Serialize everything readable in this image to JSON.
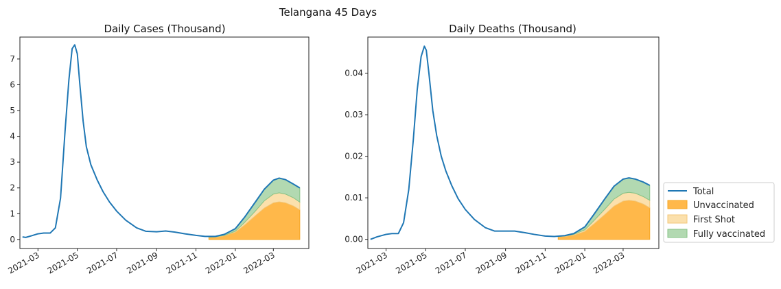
{
  "figure": {
    "title": "Telangana 45 Days"
  },
  "colors": {
    "total": "#1f77b4",
    "unvaccinated": "#ffb84a",
    "first_shot": "#fbe0ac",
    "fully_vaccinated": "#b2d9b1",
    "axis": "#222222"
  },
  "legend": {
    "items": [
      {
        "key": "total",
        "label": "Total"
      },
      {
        "key": "unvaccinated",
        "label": "Unvaccinated"
      },
      {
        "key": "first_shot",
        "label": "First Shot"
      },
      {
        "key": "fully_vaccinated",
        "label": "Fully vaccinated"
      }
    ]
  },
  "chart_data": [
    {
      "type": "area",
      "title": "Daily Cases (Thousand)",
      "xlabel": "",
      "ylabel": "",
      "xlim": [
        "2021-02-01",
        "2022-04-25"
      ],
      "ylim": [
        -0.35,
        7.85
      ],
      "yticks": [
        0,
        1,
        2,
        3,
        4,
        5,
        6,
        7
      ],
      "ytick_labels": [
        "0",
        "1",
        "2",
        "3",
        "4",
        "5",
        "6",
        "7"
      ],
      "xticks": [
        "2021-03-01",
        "2021-05-01",
        "2021-07-01",
        "2021-09-01",
        "2021-11-01",
        "2022-01-01",
        "2022-03-01"
      ],
      "xtick_labels": [
        "2021-03",
        "2021-05",
        "2021-07",
        "2021-09",
        "2021-11",
        "2022-01",
        "2022-03"
      ],
      "total": {
        "x": [
          "2021-02-05",
          "2021-02-10",
          "2021-02-20",
          "2021-03-01",
          "2021-03-10",
          "2021-03-20",
          "2021-03-28",
          "2021-04-05",
          "2021-04-12",
          "2021-04-18",
          "2021-04-23",
          "2021-04-27",
          "2021-05-01",
          "2021-05-05",
          "2021-05-10",
          "2021-05-15",
          "2021-05-22",
          "2021-06-01",
          "2021-06-10",
          "2021-06-20",
          "2021-07-01",
          "2021-07-15",
          "2021-08-01",
          "2021-08-15",
          "2021-09-01",
          "2021-09-15",
          "2021-10-01",
          "2021-10-15",
          "2021-11-01",
          "2021-11-15",
          "2021-12-01",
          "2021-12-15",
          "2022-01-01",
          "2022-01-15",
          "2022-02-01",
          "2022-02-15",
          "2022-03-01",
          "2022-03-10",
          "2022-03-20",
          "2022-04-01",
          "2022-04-11"
        ],
        "y": [
          0.1,
          0.08,
          0.15,
          0.22,
          0.25,
          0.25,
          0.45,
          1.6,
          4.2,
          6.2,
          7.4,
          7.55,
          7.2,
          6.0,
          4.6,
          3.6,
          2.9,
          2.3,
          1.85,
          1.45,
          1.1,
          0.75,
          0.45,
          0.32,
          0.3,
          0.33,
          0.28,
          0.22,
          0.16,
          0.12,
          0.12,
          0.2,
          0.42,
          0.85,
          1.45,
          1.95,
          2.3,
          2.38,
          2.32,
          2.15,
          2.0
        ]
      },
      "stack": {
        "x": [
          "2021-11-21",
          "2021-12-01",
          "2021-12-15",
          "2022-01-01",
          "2022-01-15",
          "2022-02-01",
          "2022-02-15",
          "2022-03-01",
          "2022-03-10",
          "2022-03-20",
          "2022-04-01",
          "2022-04-11"
        ],
        "unvaccinated": [
          0.08,
          0.09,
          0.14,
          0.28,
          0.55,
          0.92,
          1.22,
          1.42,
          1.46,
          1.42,
          1.3,
          1.15
        ],
        "first_shot": [
          0.01,
          0.01,
          0.02,
          0.04,
          0.1,
          0.18,
          0.28,
          0.34,
          0.35,
          0.34,
          0.32,
          0.3
        ],
        "fully_vaccinated": [
          0.01,
          0.02,
          0.04,
          0.1,
          0.2,
          0.35,
          0.45,
          0.54,
          0.57,
          0.56,
          0.53,
          0.55
        ]
      }
    },
    {
      "type": "area",
      "title": "Daily Deaths (Thousand)",
      "xlabel": "",
      "ylabel": "",
      "xlim": [
        "2021-02-01",
        "2022-04-25"
      ],
      "ylim": [
        -0.0022,
        0.0487
      ],
      "yticks": [
        0.0,
        0.01,
        0.02,
        0.03,
        0.04
      ],
      "ytick_labels": [
        "0.00",
        "0.01",
        "0.02",
        "0.03",
        "0.04"
      ],
      "xticks": [
        "2021-03-01",
        "2021-05-01",
        "2021-07-01",
        "2021-09-01",
        "2021-11-01",
        "2022-01-01",
        "2022-03-01"
      ],
      "xtick_labels": [
        "2021-03",
        "2021-05",
        "2021-07",
        "2021-09",
        "2021-11",
        "2022-01",
        "2022-03"
      ],
      "total": {
        "x": [
          "2021-02-05",
          "2021-02-15",
          "2021-03-01",
          "2021-03-10",
          "2021-03-20",
          "2021-03-28",
          "2021-04-05",
          "2021-04-12",
          "2021-04-18",
          "2021-04-24",
          "2021-04-29",
          "2021-05-02",
          "2021-05-06",
          "2021-05-12",
          "2021-05-18",
          "2021-05-25",
          "2021-06-01",
          "2021-06-10",
          "2021-06-20",
          "2021-07-01",
          "2021-07-15",
          "2021-08-01",
          "2021-08-15",
          "2021-09-01",
          "2021-09-15",
          "2021-10-01",
          "2021-10-15",
          "2021-11-01",
          "2021-11-15",
          "2021-12-01",
          "2021-12-15",
          "2022-01-01",
          "2022-01-15",
          "2022-02-01",
          "2022-02-15",
          "2022-03-01",
          "2022-03-10",
          "2022-03-20",
          "2022-04-01",
          "2022-04-11"
        ],
        "y": [
          0.0,
          0.0006,
          0.0012,
          0.0014,
          0.0014,
          0.004,
          0.012,
          0.024,
          0.036,
          0.044,
          0.0465,
          0.0455,
          0.04,
          0.031,
          0.025,
          0.02,
          0.0165,
          0.013,
          0.0098,
          0.0072,
          0.0048,
          0.0028,
          0.002,
          0.002,
          0.002,
          0.0016,
          0.0012,
          0.0008,
          0.0007,
          0.0009,
          0.0014,
          0.003,
          0.006,
          0.0098,
          0.0128,
          0.0145,
          0.0148,
          0.0145,
          0.0138,
          0.013
        ]
      },
      "stack": {
        "x": [
          "2021-11-21",
          "2021-12-01",
          "2021-12-15",
          "2022-01-01",
          "2022-01-15",
          "2022-02-01",
          "2022-02-15",
          "2022-03-01",
          "2022-03-10",
          "2022-03-20",
          "2022-04-01",
          "2022-04-11"
        ],
        "unvaccinated": [
          0.0006,
          0.0007,
          0.001,
          0.0019,
          0.0037,
          0.006,
          0.008,
          0.0092,
          0.0094,
          0.0092,
          0.0085,
          0.0076
        ],
        "first_shot": [
          0.0001,
          0.0001,
          0.0002,
          0.0004,
          0.0008,
          0.0013,
          0.0017,
          0.0019,
          0.0019,
          0.0019,
          0.0018,
          0.0018
        ],
        "fully_vaccinated": [
          0.0,
          0.0001,
          0.0002,
          0.0007,
          0.0015,
          0.0025,
          0.0031,
          0.0034,
          0.0035,
          0.0034,
          0.0035,
          0.0036
        ]
      }
    }
  ]
}
